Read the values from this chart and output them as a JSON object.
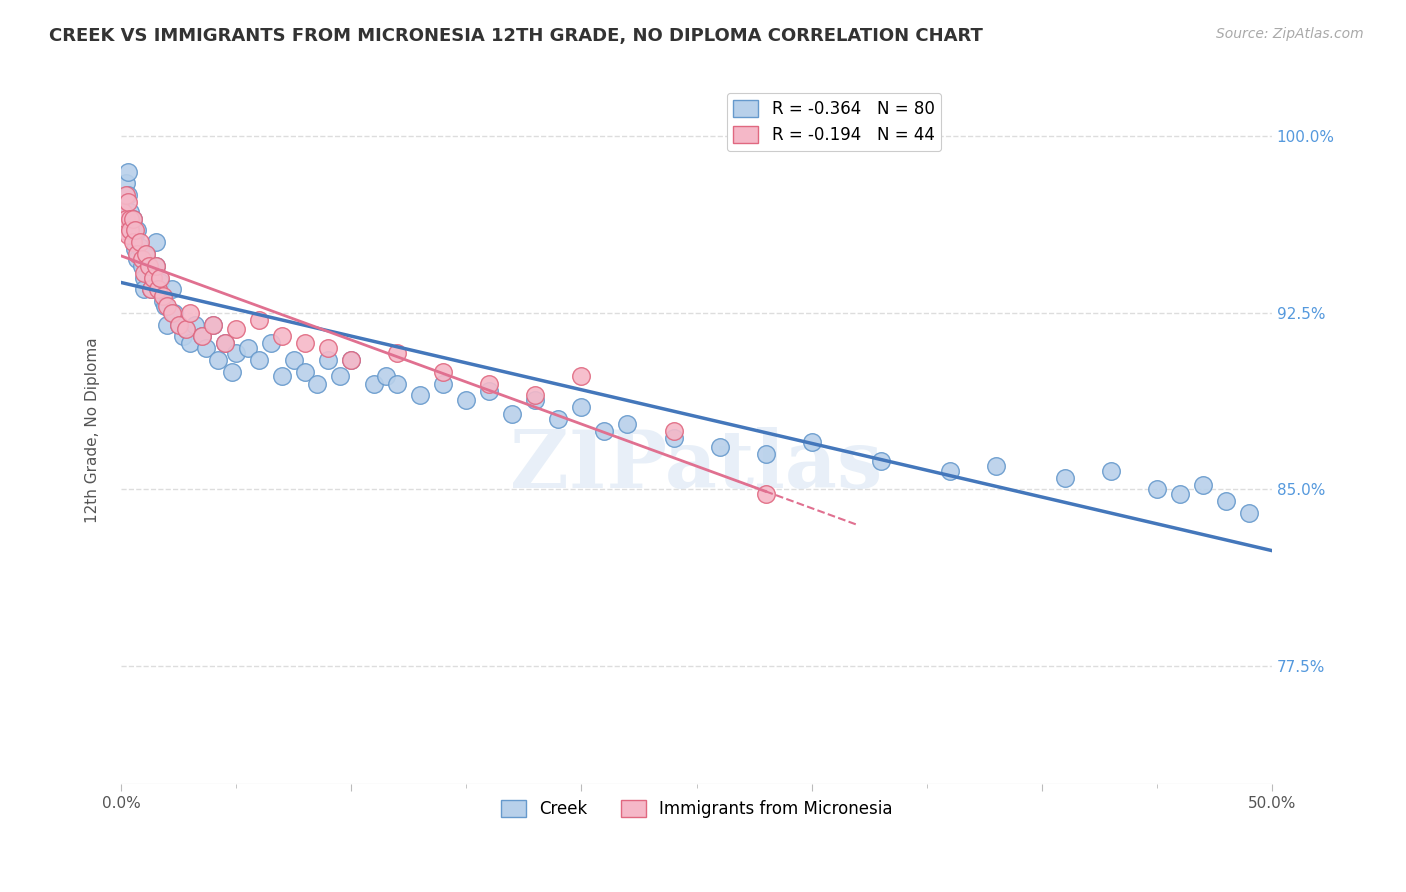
{
  "title": "CREEK VS IMMIGRANTS FROM MICRONESIA 12TH GRADE, NO DIPLOMA CORRELATION CHART",
  "source": "Source: ZipAtlas.com",
  "ylabel": "12th Grade, No Diploma",
  "yticks": [
    "100.0%",
    "92.5%",
    "85.0%",
    "77.5%"
  ],
  "ytick_vals": [
    1.0,
    0.925,
    0.85,
    0.775
  ],
  "legend_entries": [
    {
      "label": "R = -0.364   N = 80",
      "color": "#b8d0ea"
    },
    {
      "label": "R = -0.194   N = 44",
      "color": "#f5b8c8"
    }
  ],
  "legend_series": [
    "Creek",
    "Immigrants from Micronesia"
  ],
  "watermark": "ZIPatlas",
  "background_color": "#ffffff",
  "grid_color": "#dddddd",
  "creek_color": "#b8d0ea",
  "creek_edge_color": "#6699cc",
  "micronesia_color": "#f5b8c8",
  "micronesia_edge_color": "#e06880",
  "creek_line_color": "#4477bb",
  "micronesia_line_color": "#e07090",
  "creek_data_x": [
    0.001,
    0.001,
    0.002,
    0.002,
    0.003,
    0.003,
    0.004,
    0.004,
    0.005,
    0.005,
    0.006,
    0.006,
    0.007,
    0.007,
    0.008,
    0.009,
    0.01,
    0.01,
    0.011,
    0.012,
    0.013,
    0.014,
    0.015,
    0.015,
    0.016,
    0.017,
    0.018,
    0.019,
    0.02,
    0.022,
    0.023,
    0.025,
    0.027,
    0.028,
    0.03,
    0.032,
    0.035,
    0.037,
    0.04,
    0.042,
    0.045,
    0.048,
    0.05,
    0.055,
    0.06,
    0.065,
    0.07,
    0.075,
    0.08,
    0.085,
    0.09,
    0.095,
    0.1,
    0.11,
    0.115,
    0.12,
    0.13,
    0.14,
    0.15,
    0.16,
    0.17,
    0.18,
    0.19,
    0.2,
    0.21,
    0.22,
    0.24,
    0.26,
    0.28,
    0.3,
    0.33,
    0.36,
    0.38,
    0.41,
    0.43,
    0.45,
    0.46,
    0.47,
    0.48,
    0.49
  ],
  "creek_data_y": [
    0.97,
    0.96,
    0.98,
    0.965,
    0.985,
    0.975,
    0.96,
    0.968,
    0.96,
    0.965,
    0.958,
    0.952,
    0.948,
    0.96,
    0.953,
    0.945,
    0.94,
    0.935,
    0.95,
    0.945,
    0.935,
    0.94,
    0.955,
    0.945,
    0.935,
    0.938,
    0.93,
    0.928,
    0.92,
    0.935,
    0.925,
    0.92,
    0.915,
    0.918,
    0.912,
    0.92,
    0.915,
    0.91,
    0.92,
    0.905,
    0.912,
    0.9,
    0.908,
    0.91,
    0.905,
    0.912,
    0.898,
    0.905,
    0.9,
    0.895,
    0.905,
    0.898,
    0.905,
    0.895,
    0.898,
    0.895,
    0.89,
    0.895,
    0.888,
    0.892,
    0.882,
    0.888,
    0.88,
    0.885,
    0.875,
    0.878,
    0.872,
    0.868,
    0.865,
    0.87,
    0.862,
    0.858,
    0.86,
    0.855,
    0.858,
    0.85,
    0.848,
    0.852,
    0.845,
    0.84
  ],
  "micronesia_data_x": [
    0.001,
    0.001,
    0.002,
    0.002,
    0.003,
    0.003,
    0.004,
    0.004,
    0.005,
    0.005,
    0.006,
    0.007,
    0.008,
    0.009,
    0.01,
    0.011,
    0.012,
    0.013,
    0.014,
    0.015,
    0.016,
    0.017,
    0.018,
    0.02,
    0.022,
    0.025,
    0.028,
    0.03,
    0.035,
    0.04,
    0.045,
    0.05,
    0.06,
    0.07,
    0.08,
    0.09,
    0.1,
    0.12,
    0.14,
    0.16,
    0.18,
    0.2,
    0.24,
    0.28
  ],
  "micronesia_data_y": [
    0.968,
    0.96,
    0.975,
    0.965,
    0.972,
    0.958,
    0.965,
    0.96,
    0.955,
    0.965,
    0.96,
    0.95,
    0.955,
    0.948,
    0.942,
    0.95,
    0.945,
    0.935,
    0.94,
    0.945,
    0.935,
    0.94,
    0.932,
    0.928,
    0.925,
    0.92,
    0.918,
    0.925,
    0.915,
    0.92,
    0.912,
    0.918,
    0.922,
    0.915,
    0.912,
    0.91,
    0.905,
    0.908,
    0.9,
    0.895,
    0.89,
    0.898,
    0.875,
    0.848
  ],
  "xmin": 0.0,
  "xmax": 0.5,
  "ymin": 0.725,
  "ymax": 1.025,
  "micro_line_xmax": 0.32
}
